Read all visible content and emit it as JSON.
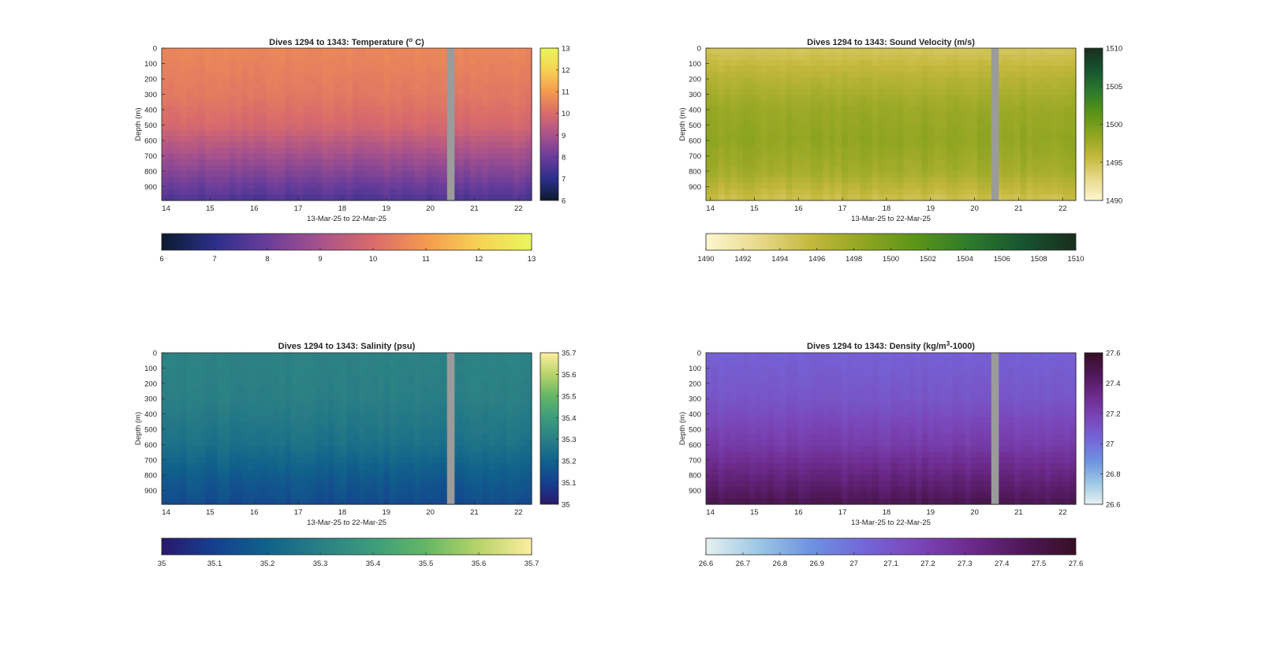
{
  "figure_note": "",
  "chart_data": [
    {
      "type": "heatmap",
      "title_prefix": "Dives 1294 to 1343: Temperature (",
      "title_sup": "o",
      "title_suffix": " C)",
      "xlabel": "13-Mar-25 to 22-Mar-25",
      "ylabel": "Depth (m)",
      "x_ticks": [
        "14",
        "15",
        "16",
        "17",
        "18",
        "19",
        "20",
        "21",
        "22"
      ],
      "x_range_days": [
        13.9,
        22.3
      ],
      "y_ticks": [
        "0",
        "100",
        "200",
        "300",
        "400",
        "500",
        "600",
        "700",
        "800",
        "900"
      ],
      "ylim": [
        0,
        990
      ],
      "data_gap_day": [
        20.38,
        20.55
      ],
      "colormap": "thermal",
      "colorbar_range": [
        6,
        13
      ],
      "colorbar_ticks": [
        "6",
        "7",
        "8",
        "9",
        "10",
        "11",
        "12",
        "13"
      ],
      "colorbar2_ticks": [
        "6",
        "7",
        "8",
        "9",
        "10",
        "11",
        "12",
        "13"
      ],
      "profile": {
        "depth": [
          0,
          300,
          500,
          700,
          850,
          990
        ],
        "value": [
          10.6,
          10.3,
          9.9,
          8.9,
          8.2,
          7.5
        ]
      },
      "colors": [
        "#0b1a2e",
        "#2c2f8a",
        "#6a3d9a",
        "#a8528c",
        "#d96b6b",
        "#f59a4e",
        "#f7d255",
        "#e9f65c"
      ]
    },
    {
      "type": "heatmap",
      "title_prefix": "Dives 1294 to 1343: Sound Velocity (m/s)",
      "title_sup": "",
      "title_suffix": "",
      "xlabel": "13-Mar-25 to 22-Mar-25",
      "ylabel": "Depth (m)",
      "x_ticks": [
        "14",
        "15",
        "16",
        "17",
        "18",
        "19",
        "20",
        "21",
        "22"
      ],
      "x_range_days": [
        13.9,
        22.3
      ],
      "y_ticks": [
        "0",
        "100",
        "200",
        "300",
        "400",
        "500",
        "600",
        "700",
        "800",
        "900"
      ],
      "ylim": [
        0,
        990
      ],
      "data_gap_day": [
        20.38,
        20.55
      ],
      "colormap": "speed",
      "colorbar_range": [
        1490,
        1510
      ],
      "colorbar_ticks": [
        "1490",
        "1495",
        "1500",
        "1505",
        "1510"
      ],
      "colorbar2_ticks": [
        "1490",
        "1492",
        "1494",
        "1496",
        "1498",
        "1500",
        "1502",
        "1504",
        "1506",
        "1508",
        "1510"
      ],
      "profile": {
        "depth": [
          0,
          200,
          400,
          600,
          800,
          990
        ],
        "value": [
          1494.5,
          1496.5,
          1498.0,
          1498.5,
          1497.5,
          1495.0
        ]
      },
      "colors": [
        "#fdf7d0",
        "#e8d98a",
        "#c4b83c",
        "#8fa521",
        "#5a9417",
        "#2d7a2c",
        "#16542f",
        "#1a2d1e"
      ]
    },
    {
      "type": "heatmap",
      "title_prefix": "Dives 1294 to 1343: Salinity (psu)",
      "title_sup": "",
      "title_suffix": "",
      "xlabel": "13-Mar-25 to 22-Mar-25",
      "ylabel": "Depth (m)",
      "x_ticks": [
        "14",
        "15",
        "16",
        "17",
        "18",
        "19",
        "20",
        "21",
        "22"
      ],
      "x_range_days": [
        13.9,
        22.3
      ],
      "y_ticks": [
        "0",
        "100",
        "200",
        "300",
        "400",
        "500",
        "600",
        "700",
        "800",
        "900"
      ],
      "ylim": [
        0,
        990
      ],
      "data_gap_day": [
        20.38,
        20.55
      ],
      "colormap": "haline",
      "colorbar_range": [
        35,
        35.7
      ],
      "colorbar_ticks": [
        "35",
        "35.1",
        "35.2",
        "35.3",
        "35.4",
        "35.5",
        "35.6",
        "35.7"
      ],
      "colorbar2_ticks": [
        "35",
        "35.1",
        "35.2",
        "35.3",
        "35.4",
        "35.5",
        "35.6",
        "35.7"
      ],
      "profile": {
        "depth": [
          0,
          300,
          600,
          800,
          990
        ],
        "value": [
          35.31,
          35.3,
          35.25,
          35.18,
          35.13
        ]
      },
      "colors": [
        "#2a186c",
        "#15408f",
        "#10628b",
        "#2a7f85",
        "#3c9c7c",
        "#65b766",
        "#b8d36a",
        "#fdeea0"
      ]
    },
    {
      "type": "heatmap",
      "title_prefix": "Dives 1294 to 1343: Density (kg/m",
      "title_sup": "3",
      "title_suffix": "-1000)",
      "xlabel": "13-Mar-25 to 22-Mar-25",
      "ylabel": "Depth (m)",
      "x_ticks": [
        "14",
        "15",
        "16",
        "17",
        "18",
        "19",
        "20",
        "21",
        "22"
      ],
      "x_range_days": [
        13.9,
        22.3
      ],
      "y_ticks": [
        "0",
        "100",
        "200",
        "300",
        "400",
        "500",
        "600",
        "700",
        "800",
        "900"
      ],
      "ylim": [
        0,
        990
      ],
      "data_gap_day": [
        20.38,
        20.55
      ],
      "colormap": "dense",
      "colorbar_range": [
        26.6,
        27.6
      ],
      "colorbar_ticks": [
        "26.6",
        "26.8",
        "27",
        "27.2",
        "27.4",
        "27.6"
      ],
      "colorbar2_ticks": [
        "26.6",
        "26.7",
        "26.8",
        "26.9",
        "27",
        "27.1",
        "27.2",
        "27.3",
        "27.4",
        "27.5",
        "27.6"
      ],
      "profile": {
        "depth": [
          0,
          300,
          600,
          800,
          990
        ],
        "value": [
          27.05,
          27.1,
          27.22,
          27.35,
          27.48
        ]
      },
      "colors": [
        "#e6f1f1",
        "#9cc7e4",
        "#6e92e0",
        "#7466d8",
        "#7a46b8",
        "#6d2a8c",
        "#4f1859",
        "#360e24"
      ]
    }
  ]
}
